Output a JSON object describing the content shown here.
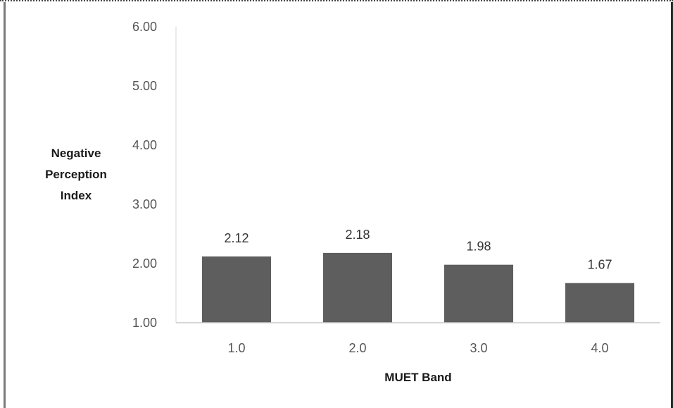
{
  "chart_data": {
    "type": "bar",
    "categories": [
      "1.0",
      "2.0",
      "3.0",
      "4.0"
    ],
    "values": [
      2.12,
      2.18,
      1.98,
      1.67
    ],
    "data_labels": [
      "2.12",
      "2.18",
      "1.98",
      "1.67"
    ],
    "xlabel": "MUET Band",
    "ylabel_lines": [
      "Negative",
      "Perception",
      "Index"
    ],
    "ylim": [
      1.0,
      6.0
    ],
    "yticks": [
      "1.00",
      "2.00",
      "3.00",
      "4.00",
      "5.00",
      "6.00"
    ],
    "bar_color": "#5e5e5e",
    "grid": false,
    "legend": "none"
  }
}
